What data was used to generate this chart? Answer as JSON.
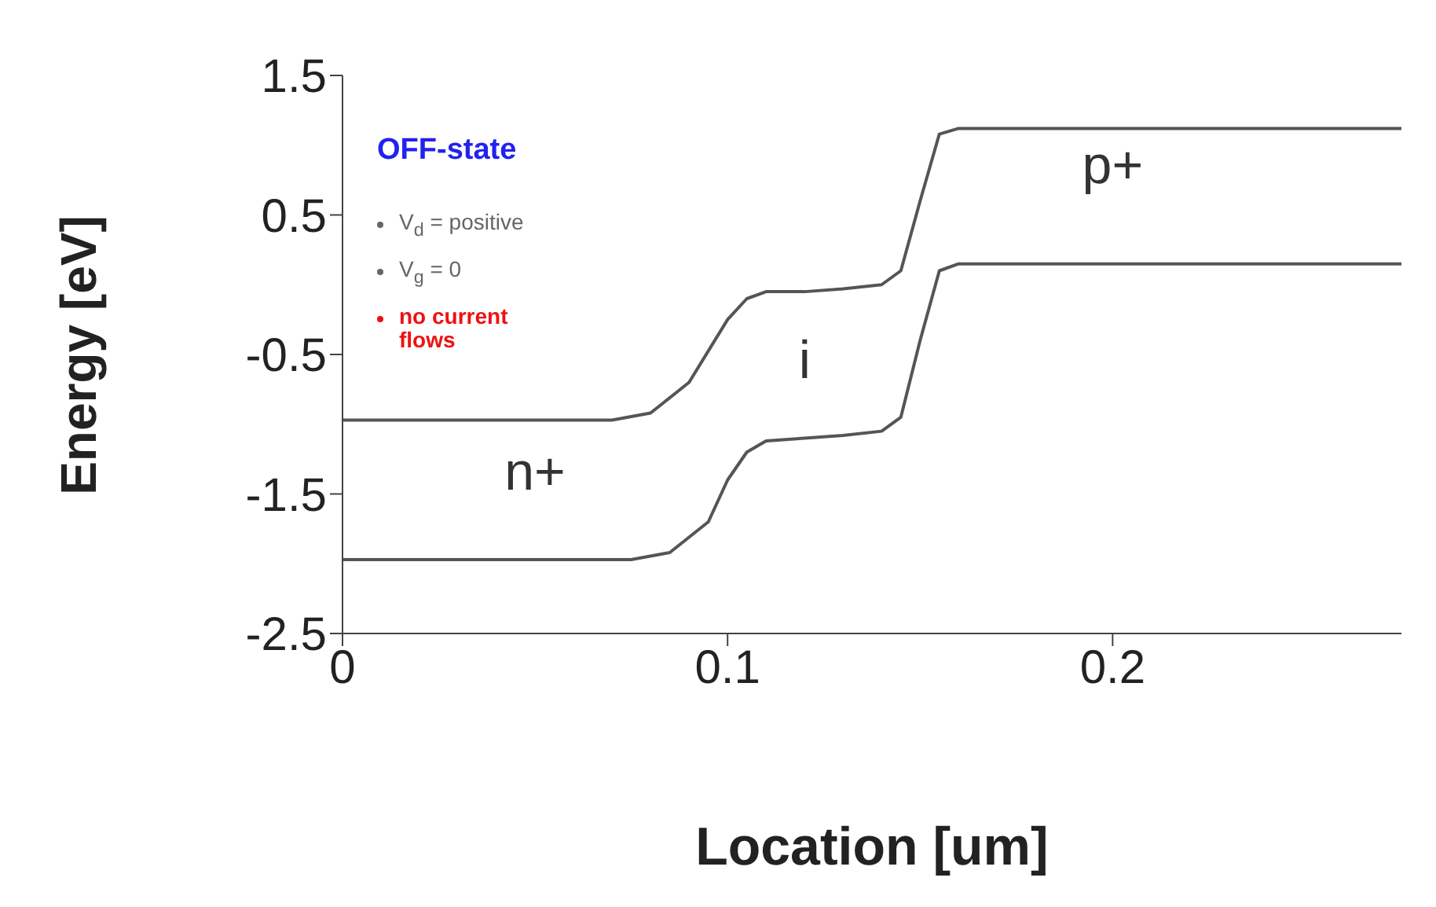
{
  "chart_data": {
    "type": "line",
    "xlabel": "Location [um]",
    "ylabel": "Energy [eV]",
    "xlim": [
      0,
      0.275
    ],
    "xticks": [
      0,
      0.1,
      0.2
    ],
    "ylim": [
      -2.5,
      1.5
    ],
    "yticks": [
      1.5,
      0.5,
      -0.5,
      -1.5,
      -2.5
    ],
    "grid": false,
    "legend": false,
    "marker": "none",
    "line_style": "solid",
    "series": [
      {
        "color": "#555555",
        "x": [
          0,
          0.07,
          0.08,
          0.09,
          0.1,
          0.105,
          0.11,
          0.12,
          0.13,
          0.14,
          0.145,
          0.15,
          0.155,
          0.16,
          0.275
        ],
        "values": [
          -0.97,
          -0.97,
          -0.92,
          -0.7,
          -0.25,
          -0.1,
          -0.05,
          -0.05,
          -0.03,
          0.0,
          0.1,
          0.6,
          1.08,
          1.12,
          1.12
        ]
      },
      {
        "color": "#555555",
        "x": [
          0,
          0.075,
          0.085,
          0.095,
          0.1,
          0.105,
          0.11,
          0.12,
          0.13,
          0.14,
          0.145,
          0.15,
          0.155,
          0.16,
          0.275
        ],
        "values": [
          -1.97,
          -1.97,
          -1.92,
          -1.7,
          -1.4,
          -1.2,
          -1.12,
          -1.1,
          -1.08,
          -1.05,
          -0.95,
          -0.4,
          0.1,
          0.15,
          0.15
        ]
      }
    ],
    "annotations": [
      "OFF-state",
      "V$_{d}$ = positive",
      "V$_{g}$ = 0",
      "no current flows",
      "p+",
      "i",
      "n+"
    ]
  }
}
